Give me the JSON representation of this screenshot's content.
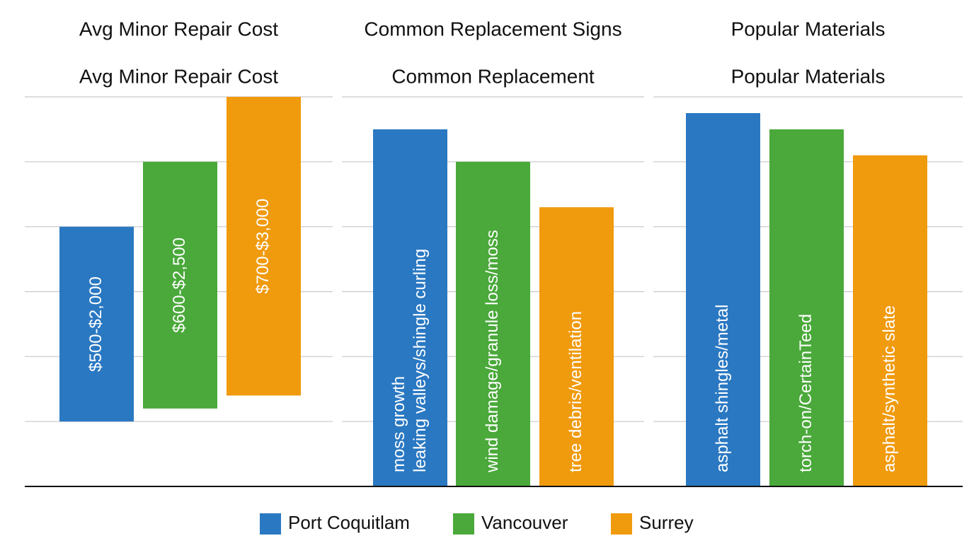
{
  "chart_data": [
    {
      "type": "floating_bar",
      "title": "Avg Minor Repair Cost",
      "subtitle": "Avg Minor Repair Cost",
      "ylim": [
        0,
        3000
      ],
      "yticks": [
        0,
        500,
        1000,
        1500,
        2000,
        2500,
        3000
      ],
      "grid": true,
      "series": [
        {
          "name": "Port Coquitlam",
          "color": "#2a78c2",
          "values": [
            [
              500,
              2000
            ]
          ],
          "value_labels": [
            "$500-$2,000"
          ]
        },
        {
          "name": "Vancouver",
          "color": "#4aa93a",
          "values": [
            [
              600,
              2500
            ]
          ],
          "value_labels": [
            "$600-$2,500"
          ]
        },
        {
          "name": "Surrey",
          "color": "#f09a0e",
          "values": [
            [
              700,
              3000
            ]
          ],
          "value_labels": [
            "$700-$3,000"
          ]
        }
      ]
    },
    {
      "type": "bar",
      "title": "Common Replacement Signs",
      "subtitle": "Common Replacement",
      "ylim": [
        0,
        6
      ],
      "yticks": [
        0,
        1,
        2,
        3,
        4,
        5,
        6
      ],
      "grid": true,
      "series": [
        {
          "color": "#2a78c2",
          "values": [
            5.5
          ],
          "value_labels": [
            [
              "moss growth",
              "leaking valleys/shingle curling"
            ]
          ]
        },
        {
          "color": "#4aa93a",
          "values": [
            5
          ],
          "value_labels": [
            [
              "wind damage/granule loss/moss"
            ]
          ]
        },
        {
          "color": "#f09a0e",
          "values": [
            4.3
          ],
          "value_labels": [
            [
              "tree debris/ventilation"
            ]
          ]
        }
      ]
    },
    {
      "type": "bar",
      "title": "Popular Materials",
      "subtitle": "Popular Materials",
      "ylim": [
        0,
        6
      ],
      "yticks": [
        0,
        1,
        2,
        3,
        4,
        5,
        6
      ],
      "grid": true,
      "series": [
        {
          "color": "#2a78c2",
          "values": [
            5.75
          ],
          "value_labels": [
            [
              "asphalt shingles/metal"
            ]
          ]
        },
        {
          "color": "#4aa93a",
          "values": [
            5.5
          ],
          "value_labels": [
            [
              "torch-on/CertainTeed"
            ]
          ]
        },
        {
          "color": "#f09a0e",
          "values": [
            5.1
          ],
          "value_labels": [
            [
              "asphalt/synthetic slate"
            ]
          ]
        }
      ]
    }
  ]
}
